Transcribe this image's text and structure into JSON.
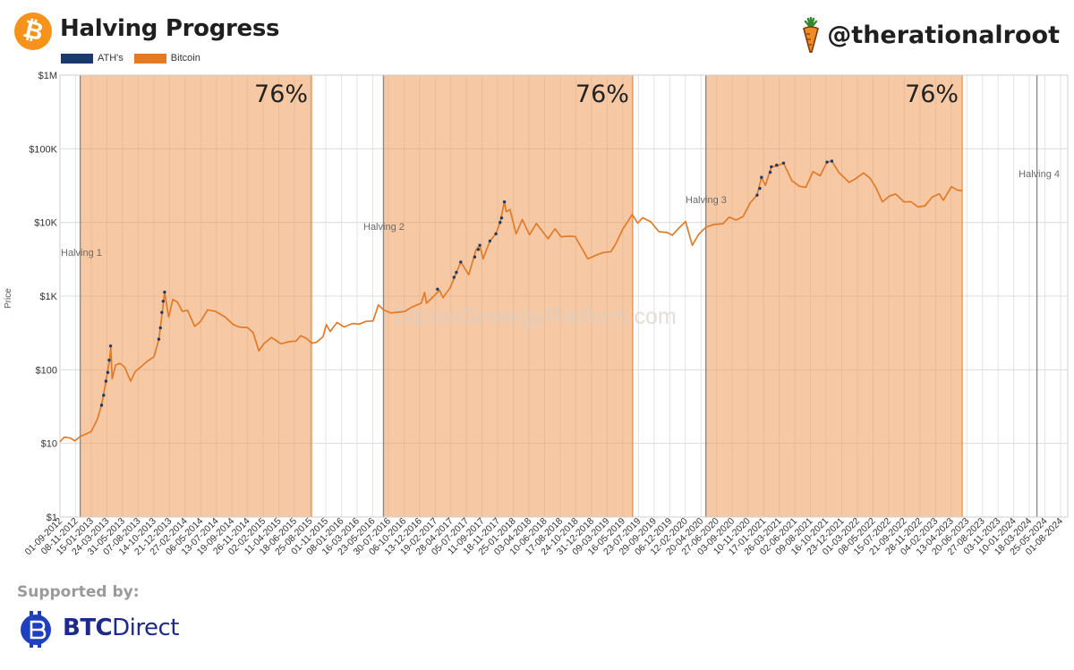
{
  "header": {
    "title": "Halving Progress",
    "handle": "@therationalroot",
    "legend": [
      {
        "label": "ATH's",
        "color": "#1b3a6b"
      },
      {
        "label": "Bitcoin",
        "color": "#e07b2a"
      }
    ]
  },
  "footer": {
    "supported_by": "Supported by:",
    "sponsor_bold": "BTC",
    "sponsor_rest": "Direct"
  },
  "chart_data": {
    "type": "line",
    "scale": "log",
    "title": "Halving Progress",
    "ylabel": "Price",
    "ylim": [
      1,
      1000000
    ],
    "y_ticks": [
      "$1",
      "$10",
      "$100",
      "$1K",
      "$10K",
      "$100K",
      "$1M"
    ],
    "y_tick_values": [
      1,
      10,
      100,
      1000,
      10000,
      100000,
      1000000
    ],
    "x_range": [
      "2012-09-01",
      "2024-09-01"
    ],
    "x_tick_labels": [
      "01-09-2012",
      "08-11-2012",
      "15-01-2013",
      "24-03-2013",
      "31-05-2013",
      "07-08-2013",
      "14-10-2013",
      "21-12-2013",
      "27-02-2014",
      "06-05-2014",
      "13-07-2014",
      "19-09-2014",
      "26-11-2014",
      "02-02-2015",
      "11-04-2015",
      "18-06-2015",
      "25-08-2015",
      "01-11-2015",
      "08-01-2016",
      "16-03-2016",
      "23-05-2016",
      "30-07-2016",
      "06-10-2016",
      "13-12-2016",
      "19-02-2017",
      "28-04-2017",
      "05-07-2017",
      "11-09-2017",
      "18-11-2017",
      "25-01-2018",
      "03-04-2018",
      "10-06-2018",
      "17-08-2018",
      "24-10-2018",
      "31-12-2018",
      "09-03-2019",
      "16-05-2019",
      "23-07-2019",
      "29-09-2019",
      "06-12-2019",
      "12-02-2020",
      "20-04-2020",
      "27-06-2020",
      "03-09-2020",
      "10-11-2020",
      "17-01-2021",
      "26-03-2021",
      "02-06-2021",
      "09-08-2021",
      "16-10-2021",
      "23-12-2021",
      "01-03-2022",
      "08-05-2022",
      "15-07-2022",
      "21-09-2022",
      "28-11-2022",
      "04-02-2023",
      "13-04-2023",
      "20-06-2023",
      "27-08-2023",
      "03-11-2023",
      "10-01-2024",
      "18-03-2024",
      "25-05-2024",
      "01-08-2024"
    ],
    "grid": true,
    "legend_position": "top-left",
    "watermark": "BitcoinStrategyPlatform.com",
    "halvings": [
      {
        "label": "Halving 1",
        "date": "2012-11-28"
      },
      {
        "label": "Halving 2",
        "date": "2016-07-09"
      },
      {
        "label": "Halving 3",
        "date": "2020-05-11"
      },
      {
        "label": "Halving 4",
        "date": "2024-04-20"
      }
    ],
    "shaded_periods": [
      {
        "start": "2012-11-28",
        "end": "2015-08-31",
        "label": "76%"
      },
      {
        "start": "2016-07-09",
        "end": "2019-06-28",
        "label": "76%"
      },
      {
        "start": "2020-05-11",
        "end": "2023-05-31",
        "label": "76%"
      }
    ],
    "series": [
      {
        "name": "Bitcoin",
        "color": "#e07b2a",
        "points": [
          [
            "2012-09-01",
            10.5
          ],
          [
            "2012-09-20",
            12.2
          ],
          [
            "2012-10-15",
            11.8
          ],
          [
            "2012-11-05",
            10.8
          ],
          [
            "2012-11-28",
            12.4
          ],
          [
            "2012-12-20",
            13.3
          ],
          [
            "2013-01-15",
            14.5
          ],
          [
            "2013-02-10",
            21
          ],
          [
            "2013-03-01",
            33
          ],
          [
            "2013-03-20",
            70
          ],
          [
            "2013-04-05",
            140
          ],
          [
            "2013-04-10",
            200
          ],
          [
            "2013-04-16",
            75
          ],
          [
            "2013-05-01",
            116
          ],
          [
            "2013-05-20",
            122
          ],
          [
            "2013-06-10",
            108
          ],
          [
            "2013-07-05",
            70
          ],
          [
            "2013-07-25",
            94
          ],
          [
            "2013-08-20",
            110
          ],
          [
            "2013-09-15",
            130
          ],
          [
            "2013-10-15",
            150
          ],
          [
            "2013-11-05",
            260
          ],
          [
            "2013-11-20",
            600
          ],
          [
            "2013-11-30",
            1130
          ],
          [
            "2013-12-18",
            520
          ],
          [
            "2014-01-05",
            900
          ],
          [
            "2014-01-25",
            830
          ],
          [
            "2014-02-15",
            620
          ],
          [
            "2014-03-10",
            640
          ],
          [
            "2014-04-10",
            390
          ],
          [
            "2014-05-05",
            450
          ],
          [
            "2014-06-05",
            650
          ],
          [
            "2014-07-10",
            620
          ],
          [
            "2014-08-20",
            520
          ],
          [
            "2014-09-25",
            410
          ],
          [
            "2014-10-20",
            380
          ],
          [
            "2014-11-25",
            375
          ],
          [
            "2014-12-20",
            320
          ],
          [
            "2015-01-14",
            180
          ],
          [
            "2015-02-05",
            225
          ],
          [
            "2015-03-10",
            275
          ],
          [
            "2015-04-20",
            225
          ],
          [
            "2015-05-25",
            240
          ],
          [
            "2015-06-25",
            245
          ],
          [
            "2015-07-15",
            290
          ],
          [
            "2015-08-10",
            265
          ],
          [
            "2015-08-31",
            230
          ],
          [
            "2015-09-20",
            235
          ],
          [
            "2015-10-20",
            280
          ],
          [
            "2015-11-04",
            410
          ],
          [
            "2015-11-20",
            330
          ],
          [
            "2015-12-20",
            440
          ],
          [
            "2016-01-20",
            380
          ],
          [
            "2016-02-25",
            425
          ],
          [
            "2016-03-25",
            415
          ],
          [
            "2016-04-25",
            455
          ],
          [
            "2016-05-25",
            460
          ],
          [
            "2016-06-17",
            760
          ],
          [
            "2016-07-09",
            650
          ],
          [
            "2016-08-10",
            590
          ],
          [
            "2016-09-10",
            605
          ],
          [
            "2016-10-10",
            620
          ],
          [
            "2016-11-10",
            710
          ],
          [
            "2016-12-20",
            800
          ],
          [
            "2017-01-04",
            1120
          ],
          [
            "2017-01-12",
            800
          ],
          [
            "2017-02-15",
            1010
          ],
          [
            "2017-03-10",
            1200
          ],
          [
            "2017-03-25",
            950
          ],
          [
            "2017-04-25",
            1300
          ],
          [
            "2017-05-20",
            2000
          ],
          [
            "2017-06-10",
            2900
          ],
          [
            "2017-07-15",
            1950
          ],
          [
            "2017-08-15",
            4200
          ],
          [
            "2017-09-01",
            4900
          ],
          [
            "2017-09-15",
            3200
          ],
          [
            "2017-10-15",
            5600
          ],
          [
            "2017-11-10",
            7000
          ],
          [
            "2017-11-28",
            10000
          ],
          [
            "2017-12-17",
            19000
          ],
          [
            "2017-12-25",
            14000
          ],
          [
            "2018-01-10",
            15000
          ],
          [
            "2018-02-06",
            7000
          ],
          [
            "2018-03-05",
            11000
          ],
          [
            "2018-04-05",
            6800
          ],
          [
            "2018-05-05",
            9700
          ],
          [
            "2018-06-25",
            6000
          ],
          [
            "2018-07-25",
            8200
          ],
          [
            "2018-08-20",
            6400
          ],
          [
            "2018-09-20",
            6500
          ],
          [
            "2018-10-20",
            6450
          ],
          [
            "2018-11-20",
            4400
          ],
          [
            "2018-12-15",
            3200
          ],
          [
            "2019-01-20",
            3600
          ],
          [
            "2019-02-20",
            3900
          ],
          [
            "2019-03-25",
            4000
          ],
          [
            "2019-04-15",
            5100
          ],
          [
            "2019-05-15",
            8000
          ],
          [
            "2019-06-26",
            12800
          ],
          [
            "2019-07-20",
            9800
          ],
          [
            "2019-08-10",
            11600
          ],
          [
            "2019-09-15",
            10200
          ],
          [
            "2019-10-20",
            7500
          ],
          [
            "2019-11-25",
            7300
          ],
          [
            "2019-12-17",
            6700
          ],
          [
            "2020-01-20",
            8700
          ],
          [
            "2020-02-13",
            10300
          ],
          [
            "2020-03-13",
            4900
          ],
          [
            "2020-04-10",
            6900
          ],
          [
            "2020-05-11",
            8600
          ],
          [
            "2020-06-15",
            9400
          ],
          [
            "2020-07-25",
            9600
          ],
          [
            "2020-08-20",
            11800
          ],
          [
            "2020-09-20",
            10800
          ],
          [
            "2020-10-20",
            12000
          ],
          [
            "2020-11-20",
            18500
          ],
          [
            "2020-12-20",
            23500
          ],
          [
            "2021-01-08",
            41000
          ],
          [
            "2021-01-25",
            32000
          ],
          [
            "2021-02-20",
            57000
          ],
          [
            "2021-03-15",
            58000
          ],
          [
            "2021-04-14",
            64000
          ],
          [
            "2021-05-20",
            37000
          ],
          [
            "2021-06-22",
            31000
          ],
          [
            "2021-07-20",
            30000
          ],
          [
            "2021-08-20",
            49000
          ],
          [
            "2021-09-20",
            43000
          ],
          [
            "2021-10-20",
            66000
          ],
          [
            "2021-11-10",
            68000
          ],
          [
            "2021-12-10",
            48000
          ],
          [
            "2022-01-24",
            35000
          ],
          [
            "2022-02-20",
            39000
          ],
          [
            "2022-03-28",
            47000
          ],
          [
            "2022-04-25",
            40000
          ],
          [
            "2022-05-20",
            30000
          ],
          [
            "2022-06-18",
            19000
          ],
          [
            "2022-07-20",
            23000
          ],
          [
            "2022-08-15",
            24300
          ],
          [
            "2022-09-20",
            19000
          ],
          [
            "2022-10-20",
            19100
          ],
          [
            "2022-11-20",
            16200
          ],
          [
            "2022-12-20",
            16800
          ],
          [
            "2023-01-20",
            22000
          ],
          [
            "2023-02-20",
            24500
          ],
          [
            "2023-03-10",
            20000
          ],
          [
            "2023-04-14",
            30500
          ],
          [
            "2023-05-10",
            27500
          ],
          [
            "2023-05-31",
            27000
          ]
        ]
      },
      {
        "name": "ATH's",
        "color": "#1b3a6b",
        "points": [
          [
            "2013-03-01",
            33
          ],
          [
            "2013-03-10",
            45
          ],
          [
            "2013-03-20",
            70
          ],
          [
            "2013-03-28",
            92
          ],
          [
            "2013-04-03",
            135
          ],
          [
            "2013-04-09",
            210
          ],
          [
            "2013-11-05",
            260
          ],
          [
            "2013-11-12",
            370
          ],
          [
            "2013-11-18",
            600
          ],
          [
            "2013-11-24",
            850
          ],
          [
            "2013-11-30",
            1130
          ],
          [
            "2017-03-01",
            1240
          ],
          [
            "2017-05-12",
            1800
          ],
          [
            "2017-05-22",
            2100
          ],
          [
            "2017-06-10",
            2900
          ],
          [
            "2017-08-10",
            3400
          ],
          [
            "2017-08-25",
            4300
          ],
          [
            "2017-09-01",
            4900
          ],
          [
            "2017-10-15",
            5600
          ],
          [
            "2017-11-10",
            7000
          ],
          [
            "2017-11-28",
            10000
          ],
          [
            "2017-12-05",
            11500
          ],
          [
            "2017-12-17",
            19000
          ],
          [
            "2020-12-20",
            23500
          ],
          [
            "2021-01-01",
            29000
          ],
          [
            "2021-01-08",
            41000
          ],
          [
            "2021-02-15",
            48000
          ],
          [
            "2021-02-20",
            57000
          ],
          [
            "2021-03-15",
            60000
          ],
          [
            "2021-04-14",
            64000
          ],
          [
            "2021-10-20",
            66000
          ],
          [
            "2021-11-10",
            68000
          ]
        ]
      }
    ]
  }
}
